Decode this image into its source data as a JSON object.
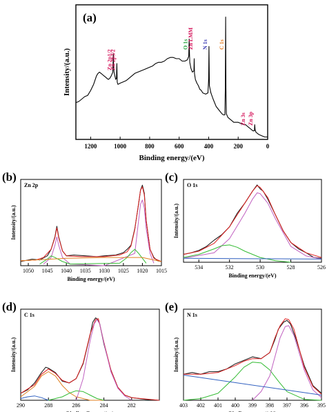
{
  "chart_data": [
    {
      "panel": "(a)",
      "type": "line",
      "xlabel": "Binding energy/(eV)",
      "ylabel": "Intensity/(a.u.)",
      "xlim": [
        1300,
        0
      ],
      "xticks": [
        "1200",
        "1000",
        "800",
        "600",
        "400",
        "200",
        "0"
      ],
      "x": [
        1300,
        1280,
        1260,
        1240,
        1220,
        1200,
        1180,
        1160,
        1150,
        1140,
        1130,
        1120,
        1110,
        1100,
        1090,
        1080,
        1070,
        1060,
        1050,
        1046,
        1044,
        1040,
        1030,
        1025,
        1022,
        1020,
        1018,
        1015,
        1000,
        980,
        960,
        940,
        920,
        900,
        880,
        860,
        840,
        820,
        800,
        780,
        760,
        740,
        720,
        700,
        680,
        660,
        640,
        620,
        600,
        580,
        560,
        545,
        535,
        532,
        530,
        528,
        520,
        510,
        500,
        498,
        496,
        490,
        480,
        470,
        460,
        450,
        440,
        420,
        405,
        400,
        398,
        395,
        385,
        370,
        350,
        330,
        310,
        300,
        290,
        287,
        285,
        283,
        280,
        270,
        250,
        230,
        220,
        200,
        180,
        160,
        150,
        140,
        130,
        120,
        100,
        90,
        88,
        85,
        80,
        60,
        40,
        20,
        0
      ],
      "y": [
        30,
        31,
        33,
        35,
        36,
        40,
        45,
        52,
        54,
        55,
        54,
        53,
        52,
        51,
        50,
        49,
        50,
        52,
        55,
        70,
        58,
        54,
        49,
        50,
        62,
        47,
        46,
        45,
        46,
        47,
        48,
        50,
        52,
        54,
        55,
        56,
        57,
        58,
        59,
        60,
        62,
        63,
        63,
        64,
        66,
        67,
        67,
        66,
        66,
        64,
        64,
        65,
        68,
        82,
        70,
        63,
        58,
        55,
        56,
        66,
        54,
        49,
        46,
        44,
        41,
        40,
        38,
        37,
        38,
        50,
        76,
        44,
        38,
        33,
        27,
        24,
        21,
        20,
        20,
        42,
        100,
        42,
        21,
        18,
        16,
        14,
        14,
        14,
        13,
        12,
        12,
        11,
        10,
        9,
        7,
        7,
        12,
        8,
        6,
        4,
        3,
        2,
        2
      ],
      "annotations": [
        {
          "text": "Zn 2p1/2",
          "x": 1044,
          "color": "#d4145a"
        },
        {
          "text": "Zn 2p3/2",
          "x": 1021,
          "color": "#d4145a"
        },
        {
          "text": "O 1s",
          "x": 530,
          "color": "#22a33a"
        },
        {
          "text": "Zn LMM",
          "x": 496,
          "color": "#d4145a"
        },
        {
          "text": "N 1s",
          "x": 398,
          "color": "#3b3bb3"
        },
        {
          "text": "C 1s",
          "x": 285,
          "color": "#e67e22"
        },
        {
          "text": "Zn 3s",
          "x": 140,
          "color": "#d4145a"
        },
        {
          "text": "Zn 3p",
          "x": 88,
          "color": "#d4145a"
        }
      ]
    },
    {
      "panel": "(b)",
      "type": "line",
      "region": "Zn 2p",
      "xlabel": "Binding energy/(eV)",
      "ylabel": "Intensity/(a.u.)",
      "xlim": [
        1052,
        1015
      ],
      "xticks": [
        "1050",
        "1045",
        "1040",
        "1035",
        "1030",
        "1025",
        "1020",
        "1015"
      ],
      "series": [
        {
          "color": "#222222",
          "x": [
            1052,
            1049,
            1047,
            1045,
            1044,
            1043,
            1042.5,
            1042,
            1041,
            1040,
            1038,
            1035,
            1032,
            1030,
            1027,
            1025,
            1024,
            1023,
            1022,
            1021,
            1020.5,
            1020,
            1019.5,
            1019,
            1018,
            1017,
            1016,
            1015
          ],
          "y": [
            0.05,
            0.08,
            0.07,
            0.12,
            0.2,
            0.35,
            0.48,
            0.35,
            0.18,
            0.12,
            0.13,
            0.12,
            0.11,
            0.12,
            0.13,
            0.16,
            0.2,
            0.25,
            0.45,
            0.75,
            0.92,
            0.98,
            0.88,
            0.55,
            0.2,
            0.1,
            0.06,
            0.05
          ]
        },
        {
          "color": "#e02020",
          "x": [
            1052,
            1048,
            1046,
            1044,
            1043,
            1042.5,
            1042,
            1041,
            1040,
            1036,
            1030,
            1026,
            1024,
            1023,
            1022,
            1021,
            1020.5,
            1020,
            1019.5,
            1019,
            1018,
            1017,
            1015
          ],
          "y": [
            0.06,
            0.07,
            0.1,
            0.2,
            0.34,
            0.46,
            0.34,
            0.18,
            0.12,
            0.11,
            0.11,
            0.13,
            0.17,
            0.24,
            0.44,
            0.76,
            0.92,
            0.96,
            0.86,
            0.55,
            0.2,
            0.09,
            0.05
          ]
        },
        {
          "color": "#c060c0",
          "x": [
            1046,
            1044,
            1043,
            1042.5,
            1042,
            1041,
            1039,
            1030,
            1022,
            1021,
            1020.5,
            1020,
            1019.5,
            1019,
            1018,
            1017
          ],
          "y": [
            0.02,
            0.1,
            0.25,
            0.35,
            0.25,
            0.1,
            0.02,
            0.0,
            0.15,
            0.55,
            0.75,
            0.8,
            0.7,
            0.45,
            0.15,
            0.03
          ]
        },
        {
          "color": "#33bb33",
          "x": [
            1047,
            1045,
            1044,
            1043,
            1041,
            1039,
            1026,
            1024,
            1023,
            1022,
            1021,
            1019
          ],
          "y": [
            0.02,
            0.08,
            0.12,
            0.1,
            0.05,
            0.02,
            0.03,
            0.1,
            0.16,
            0.2,
            0.15,
            0.03
          ]
        },
        {
          "color": "#e08020",
          "x": [
            1052,
            1040,
            1030,
            1020,
            1015
          ],
          "y": [
            0.06,
            0.09,
            0.1,
            0.1,
            0.05
          ]
        }
      ]
    },
    {
      "panel": "(c)",
      "type": "line",
      "region": "O 1s",
      "xlabel": "Binding energy/(eV)",
      "ylabel": "Intensity/(a.u.)",
      "xlim": [
        535,
        526
      ],
      "xticks": [
        "534",
        "532",
        "530",
        "528",
        "526"
      ],
      "series": [
        {
          "color": "#222222",
          "x": [
            535,
            534.5,
            534,
            533.5,
            533,
            532.5,
            532,
            531.5,
            531,
            530.5,
            530.2,
            530,
            529.8,
            529.5,
            529,
            528.5,
            528,
            527.5,
            527,
            526.5,
            526
          ],
          "y": [
            0.1,
            0.12,
            0.15,
            0.2,
            0.28,
            0.35,
            0.45,
            0.62,
            0.75,
            0.9,
            0.98,
            0.93,
            0.9,
            0.8,
            0.6,
            0.4,
            0.25,
            0.17,
            0.12,
            0.06,
            0.05
          ]
        },
        {
          "color": "#e02020",
          "x": [
            535,
            534,
            533,
            532,
            531.5,
            531,
            530.5,
            530.2,
            530,
            529.5,
            529,
            528.5,
            528,
            527,
            526
          ],
          "y": [
            0.1,
            0.14,
            0.24,
            0.45,
            0.6,
            0.75,
            0.9,
            0.97,
            0.95,
            0.82,
            0.6,
            0.4,
            0.25,
            0.12,
            0.06
          ]
        },
        {
          "color": "#c060c0",
          "x": [
            535,
            533,
            532,
            531,
            530.5,
            530.2,
            530,
            529.5,
            529,
            528,
            527,
            526
          ],
          "y": [
            0.05,
            0.12,
            0.3,
            0.62,
            0.8,
            0.88,
            0.87,
            0.75,
            0.55,
            0.2,
            0.08,
            0.04
          ]
        },
        {
          "color": "#33bb33",
          "x": [
            535,
            534,
            533,
            532.5,
            532,
            531.5,
            531,
            530,
            529,
            528
          ],
          "y": [
            0.06,
            0.1,
            0.17,
            0.21,
            0.22,
            0.19,
            0.14,
            0.06,
            0.02,
            0.0
          ]
        },
        {
          "color": "#3060c0",
          "x": [
            535,
            526
          ],
          "y": [
            0.05,
            0.04
          ]
        }
      ]
    },
    {
      "panel": "(d)",
      "type": "line",
      "region": "C 1s",
      "xlabel": "Binding Energy/(ev)",
      "ylabel": "Intensity/(a.u.)",
      "xlim": [
        290,
        280
      ],
      "xticks": [
        "290",
        "288",
        "286",
        "284",
        "282"
      ],
      "series": [
        {
          "color": "#222222",
          "x": [
            290,
            289.5,
            289,
            288.5,
            288.2,
            288,
            287.5,
            287,
            286.5,
            286,
            285.5,
            285,
            284.8,
            284.6,
            284.5,
            284.3,
            284,
            283.5,
            283,
            282.5,
            282,
            281,
            280
          ],
          "y": [
            0.08,
            0.12,
            0.2,
            0.32,
            0.38,
            0.37,
            0.32,
            0.22,
            0.2,
            0.25,
            0.42,
            0.75,
            0.9,
            0.95,
            0.94,
            0.88,
            0.65,
            0.35,
            0.15,
            0.06,
            0.03,
            0.01,
            0.0
          ]
        },
        {
          "color": "#e02020",
          "x": [
            290,
            289,
            288.5,
            288,
            287.5,
            287,
            286.5,
            286,
            285.5,
            285,
            284.6,
            284.4,
            284,
            283.5,
            283,
            282.5,
            282,
            280
          ],
          "y": [
            0.08,
            0.18,
            0.3,
            0.36,
            0.31,
            0.23,
            0.2,
            0.25,
            0.43,
            0.76,
            0.93,
            0.94,
            0.67,
            0.35,
            0.15,
            0.06,
            0.03,
            0.0
          ]
        },
        {
          "color": "#e08020",
          "x": [
            290,
            289,
            288.5,
            288,
            287.5,
            287,
            286.5,
            286,
            285,
            284
          ],
          "y": [
            0.04,
            0.16,
            0.28,
            0.33,
            0.28,
            0.17,
            0.09,
            0.04,
            0.0,
            0.0
          ]
        },
        {
          "color": "#33bb33",
          "x": [
            288,
            287,
            286.5,
            286,
            285.5,
            285,
            284.5,
            284
          ],
          "y": [
            0.0,
            0.04,
            0.08,
            0.11,
            0.1,
            0.06,
            0.02,
            0.0
          ]
        },
        {
          "color": "#c060c0",
          "x": [
            286,
            285.5,
            285,
            284.7,
            284.5,
            284.3,
            284,
            283.5,
            283,
            282.5,
            282
          ],
          "y": [
            0.0,
            0.25,
            0.68,
            0.88,
            0.93,
            0.88,
            0.66,
            0.33,
            0.14,
            0.05,
            0.0
          ]
        },
        {
          "color": "#3060c0",
          "x": [
            290,
            289.5,
            289,
            288.5,
            288
          ],
          "y": [
            0.02,
            0.04,
            0.05,
            0.03,
            0.0
          ]
        }
      ]
    },
    {
      "panel": "(e)",
      "type": "line",
      "region": "N 1s",
      "xlabel": "Binding energy/(eV)",
      "ylabel": "Intensity/(a.u.)",
      "xlim": [
        403,
        395
      ],
      "xticks": [
        "403",
        "402",
        "401",
        "400",
        "399",
        "398",
        "397",
        "396",
        "395"
      ],
      "series": [
        {
          "color": "#222222",
          "x": [
            403,
            402.5,
            402,
            401.5,
            401,
            400.5,
            400,
            399.5,
            399,
            398.5,
            398,
            397.7,
            397.5,
            397.2,
            397,
            396.8,
            396.5,
            396,
            395.5,
            395
          ],
          "y": [
            0.3,
            0.32,
            0.3,
            0.33,
            0.33,
            0.36,
            0.42,
            0.46,
            0.5,
            0.48,
            0.55,
            0.7,
            0.82,
            0.9,
            0.92,
            0.88,
            0.72,
            0.4,
            0.17,
            0.08
          ]
        },
        {
          "color": "#e02020",
          "x": [
            403,
            402,
            401,
            400,
            399.5,
            399,
            398.5,
            398,
            397.7,
            397.4,
            397.1,
            396.9,
            396.6,
            396.3,
            396,
            395.5,
            395
          ],
          "y": [
            0.3,
            0.3,
            0.32,
            0.4,
            0.45,
            0.48,
            0.48,
            0.55,
            0.72,
            0.86,
            0.94,
            0.93,
            0.82,
            0.6,
            0.38,
            0.16,
            0.07
          ]
        },
        {
          "color": "#33bb33",
          "x": [
            403,
            402,
            401,
            400,
            399.5,
            399,
            398.5,
            398,
            397.5,
            397,
            396,
            395
          ],
          "y": [
            0.0,
            0.02,
            0.08,
            0.27,
            0.38,
            0.44,
            0.43,
            0.35,
            0.22,
            0.1,
            0.01,
            0.0
          ]
        },
        {
          "color": "#c060c0",
          "x": [
            399,
            398.5,
            398,
            397.7,
            397.4,
            397.1,
            396.9,
            396.6,
            396.3,
            396,
            395.5,
            395
          ],
          "y": [
            0.0,
            0.1,
            0.28,
            0.5,
            0.72,
            0.85,
            0.86,
            0.75,
            0.55,
            0.35,
            0.12,
            0.03
          ]
        },
        {
          "color": "#3060c0",
          "x": [
            403,
            395
          ],
          "y": [
            0.29,
            0.06
          ]
        }
      ]
    }
  ]
}
